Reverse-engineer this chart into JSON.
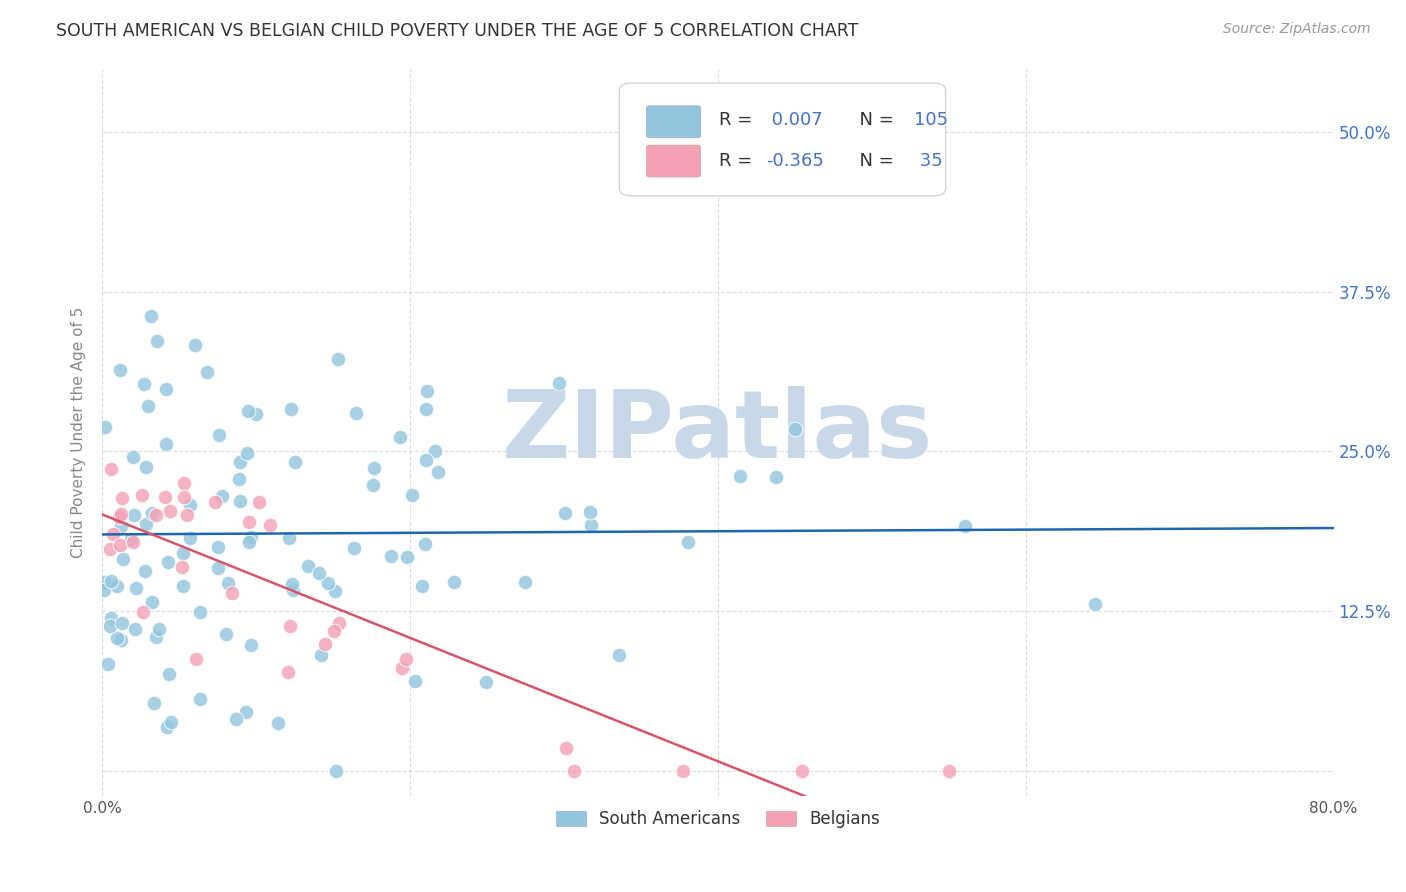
{
  "title": "SOUTH AMERICAN VS BELGIAN CHILD POVERTY UNDER THE AGE OF 5 CORRELATION CHART",
  "source": "Source: ZipAtlas.com",
  "ylabel": "Child Poverty Under the Age of 5",
  "xlim": [
    0.0,
    0.8
  ],
  "ylim": [
    -0.02,
    0.55
  ],
  "yticks": [
    0.0,
    0.125,
    0.25,
    0.375,
    0.5
  ],
  "ytick_labels": [
    "",
    "12.5%",
    "25.0%",
    "37.5%",
    "50.0%"
  ],
  "xticks": [
    0.0,
    0.2,
    0.4,
    0.6,
    0.8
  ],
  "xtick_labels": [
    "0.0%",
    "",
    "",
    "",
    "80.0%"
  ],
  "blue_R": 0.007,
  "blue_N": 105,
  "pink_R": -0.365,
  "pink_N": 35,
  "blue_color": "#92c5de",
  "pink_color": "#f4a0b5",
  "blue_line_color": "#2166ac",
  "pink_line_color": "#d6556a",
  "pink_line_dash_color": "#c8c8d8",
  "watermark": "ZIPatlas",
  "watermark_color": "#c8d8e8",
  "legend_label_blue": "South Americans",
  "legend_label_pink": "Belgians",
  "background_color": "#ffffff",
  "grid_color": "#cccccc",
  "title_color": "#333333",
  "axis_label_color": "#888888",
  "right_ytick_color": "#4472c4",
  "legend_text_color": "#333333",
  "seed": 99
}
